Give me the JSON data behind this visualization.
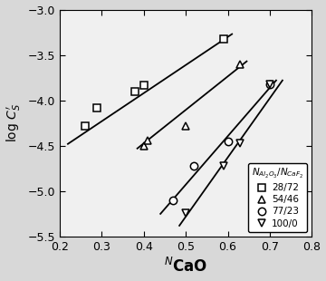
{
  "xlabel": "$^{N}$CaO",
  "ylabel": "log $C_S$$^{\\prime}$",
  "xlim": [
    0.2,
    0.8
  ],
  "ylim": [
    -5.5,
    -3.0
  ],
  "xticks": [
    0.2,
    0.3,
    0.4,
    0.5,
    0.6,
    0.7,
    0.8
  ],
  "yticks": [
    -5.5,
    -5.0,
    -4.5,
    -4.0,
    -3.5,
    -3.0
  ],
  "series": [
    {
      "label": "28/72",
      "marker": "s",
      "x_data": [
        0.26,
        0.29,
        0.38,
        0.4,
        0.59
      ],
      "y_data": [
        -4.28,
        -4.08,
        -3.9,
        -3.83,
        -3.32
      ],
      "fit_x": [
        0.22,
        0.61
      ],
      "fit_y": [
        -4.48,
        -3.27
      ]
    },
    {
      "label": "54/46",
      "marker": "^",
      "x_data": [
        0.4,
        0.41,
        0.5,
        0.63
      ],
      "y_data": [
        -4.5,
        -4.44,
        -4.28,
        -3.6
      ],
      "fit_x": [
        0.385,
        0.645
      ],
      "fit_y": [
        -4.53,
        -3.57
      ]
    },
    {
      "label": "77/23",
      "marker": "o",
      "x_data": [
        0.47,
        0.52,
        0.6,
        0.7
      ],
      "y_data": [
        -5.1,
        -4.72,
        -4.45,
        -3.82
      ],
      "fit_x": [
        0.44,
        0.715
      ],
      "fit_y": [
        -5.25,
        -3.78
      ]
    },
    {
      "label": "100/0",
      "marker": "v",
      "x_data": [
        0.5,
        0.59,
        0.63,
        0.7
      ],
      "y_data": [
        -5.24,
        -4.72,
        -4.47,
        -3.82
      ],
      "fit_x": [
        0.485,
        0.73
      ],
      "fit_y": [
        -5.38,
        -3.78
      ]
    }
  ],
  "legend_title": "$N_{Al_2O_3}$/$N_{CaF_2}$",
  "bg_color": "#d8d8d8",
  "plot_bg_color": "#f0f0f0",
  "line_color": "black",
  "marker_facecolor": "white",
  "marker_edge_color": "black",
  "marker_size": 6,
  "line_width": 1.3
}
